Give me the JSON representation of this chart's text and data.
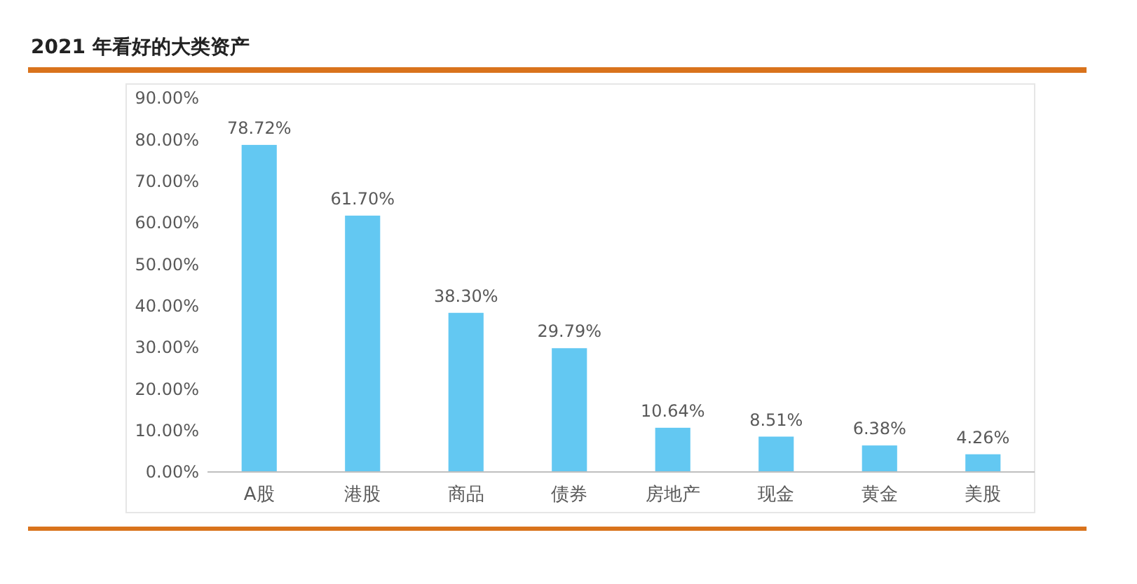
{
  "chart_data": {
    "type": "bar",
    "title": "2021 年看好的大类资产",
    "categories": [
      "A股",
      "港股",
      "商品",
      "债券",
      "房地产",
      "现金",
      "黄金",
      "美股"
    ],
    "values": [
      78.72,
      61.7,
      38.3,
      29.79,
      10.64,
      8.51,
      6.38,
      4.26
    ],
    "value_labels": [
      "78.72%",
      "61.70%",
      "38.30%",
      "29.79%",
      "10.64%",
      "8.51%",
      "6.38%",
      "4.26%"
    ],
    "color": "#63c8f2",
    "ylim": [
      0,
      90
    ],
    "yticks": [
      {
        "value": 0,
        "label": "0.00%"
      },
      {
        "value": 10,
        "label": "10.00%"
      },
      {
        "value": 20,
        "label": "20.00%"
      },
      {
        "value": 30,
        "label": "30.00%"
      },
      {
        "value": 40,
        "label": "40.00%"
      },
      {
        "value": 50,
        "label": "50.00%"
      },
      {
        "value": 60,
        "label": "60.00%"
      },
      {
        "value": 70,
        "label": "70.00%"
      },
      {
        "value": 80,
        "label": "80.00%"
      },
      {
        "value": 90,
        "label": "90.00%"
      }
    ],
    "grid": false
  }
}
